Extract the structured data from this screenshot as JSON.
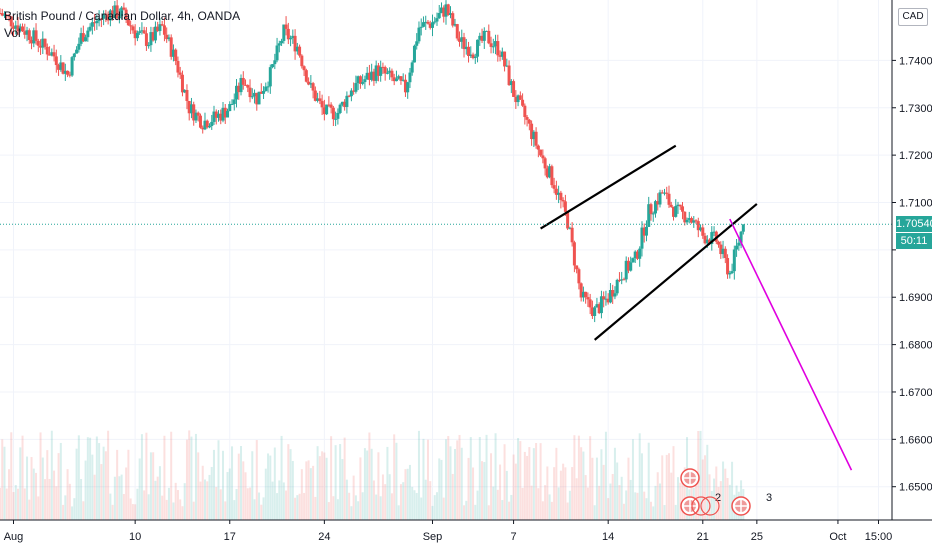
{
  "legend": {
    "title": "British Pound / Canadian Dollar, 4h, OANDA",
    "vol_label": "Vol"
  },
  "currency_label": "CAD",
  "last_price_label": "1.70540",
  "countdown_label": "50:11",
  "colors": {
    "up": "#26a69a",
    "down": "#ef5350",
    "projection": "#e000e0",
    "trendline": "#000000",
    "grid": "#f0f3fa",
    "axis": "#131722",
    "price_tag": "#26a69a"
  },
  "events": [
    {
      "date": "2020-09-24",
      "icon": "uk-flag-icon",
      "count_label": ""
    },
    {
      "date": "2020-09-24",
      "icon": "uk-flag-icon",
      "count_label": "2"
    },
    {
      "date": "2020-09-26",
      "icon": "uk-flag-icon",
      "count_label": "3"
    }
  ],
  "chart_data": {
    "type": "candlestick",
    "title": "British Pound / Canadian Dollar, 4h, OANDA",
    "x_axis": {
      "type": "date",
      "range": [
        "2020-07-31",
        "2020-10-05"
      ],
      "ticks": [
        {
          "date": "2020-08-01",
          "label": "Aug"
        },
        {
          "date": "2020-08-10",
          "label": "10"
        },
        {
          "date": "2020-08-17",
          "label": "17"
        },
        {
          "date": "2020-08-24",
          "label": "24"
        },
        {
          "date": "2020-09-01",
          "label": "Sep"
        },
        {
          "date": "2020-09-07",
          "label": "7"
        },
        {
          "date": "2020-09-14",
          "label": "14"
        },
        {
          "date": "2020-09-21",
          "label": "21"
        },
        {
          "date": "2020-09-25",
          "label": "25"
        },
        {
          "date": "2020-10-01",
          "label": "Oct"
        },
        {
          "date": "2020-10-04",
          "label": "15:00"
        }
      ]
    },
    "y_axis": {
      "range": [
        1.64297,
        1.75275
      ],
      "ticks": [
        1.65,
        1.66,
        1.67,
        1.68,
        1.69,
        1.7,
        1.71,
        1.72,
        1.73,
        1.74
      ],
      "tick_labels": [
        "1.65000",
        "1.66000",
        "1.67000",
        "1.68000",
        "1.69000",
        "",
        "1.71000",
        "1.72000",
        "1.73000",
        "1.74000"
      ],
      "side": "right"
    },
    "grid": true,
    "close_path": [
      [
        "2020-07-31",
        1.75
      ],
      [
        "2020-08-02",
        1.746
      ],
      [
        "2020-08-04",
        1.741
      ],
      [
        "2020-08-05",
        1.737
      ],
      [
        "2020-08-06",
        1.745
      ],
      [
        "2020-08-07",
        1.748
      ],
      [
        "2020-08-08",
        1.75
      ],
      [
        "2020-08-09",
        1.75
      ],
      [
        "2020-08-10",
        1.746
      ],
      [
        "2020-08-11",
        1.744
      ],
      [
        "2020-08-12",
        1.747
      ],
      [
        "2020-08-13",
        1.74
      ],
      [
        "2020-08-14",
        1.73
      ],
      [
        "2020-08-15",
        1.727
      ],
      [
        "2020-08-16",
        1.728
      ],
      [
        "2020-08-17",
        1.73
      ],
      [
        "2020-08-18",
        1.736
      ],
      [
        "2020-08-19",
        1.732
      ],
      [
        "2020-08-20",
        1.737
      ],
      [
        "2020-08-21",
        1.746
      ],
      [
        "2020-08-22",
        1.743
      ],
      [
        "2020-08-23",
        1.734
      ],
      [
        "2020-08-24",
        1.729
      ],
      [
        "2020-08-25",
        1.729
      ],
      [
        "2020-08-26",
        1.734
      ],
      [
        "2020-08-27",
        1.736
      ],
      [
        "2020-08-28",
        1.738
      ],
      [
        "2020-08-29",
        1.736
      ],
      [
        "2020-08-30",
        1.734
      ],
      [
        "2020-08-31",
        1.747
      ],
      [
        "2020-09-01",
        1.748
      ],
      [
        "2020-09-02",
        1.751
      ],
      [
        "2020-09-03",
        1.744
      ],
      [
        "2020-09-04",
        1.742
      ],
      [
        "2020-09-05",
        1.745
      ],
      [
        "2020-09-06",
        1.742
      ],
      [
        "2020-09-07",
        1.733
      ],
      [
        "2020-09-08",
        1.727
      ],
      [
        "2020-09-09",
        1.72
      ],
      [
        "2020-09-10",
        1.714
      ],
      [
        "2020-09-11",
        1.706
      ],
      [
        "2020-09-12",
        1.69
      ],
      [
        "2020-09-13",
        1.687
      ],
      [
        "2020-09-14",
        1.69
      ],
      [
        "2020-09-15",
        1.695
      ],
      [
        "2020-09-16",
        1.698
      ],
      [
        "2020-09-17",
        1.708
      ],
      [
        "2020-09-18",
        1.712
      ],
      [
        "2020-09-19",
        1.708
      ],
      [
        "2020-09-20",
        1.707
      ],
      [
        "2020-09-21",
        1.703
      ],
      [
        "2020-09-22",
        1.702
      ],
      [
        "2020-09-23",
        1.695
      ],
      [
        "2020-09-24",
        1.7054
      ]
    ],
    "volume_scale": [
      0,
      1
    ],
    "trendlines": [
      {
        "from": [
          "2020-09-09",
          1.7045
        ],
        "to": [
          "2020-09-19",
          1.722
        ]
      },
      {
        "from": [
          "2020-09-13",
          1.681
        ],
        "to": [
          "2020-09-25",
          1.7097
        ]
      },
      {
        "from": [
          "2020-09-23",
          1.7065
        ],
        "to": [
          "2020-10-02",
          1.6535
        ]
      }
    ],
    "last_price": 1.7054
  }
}
